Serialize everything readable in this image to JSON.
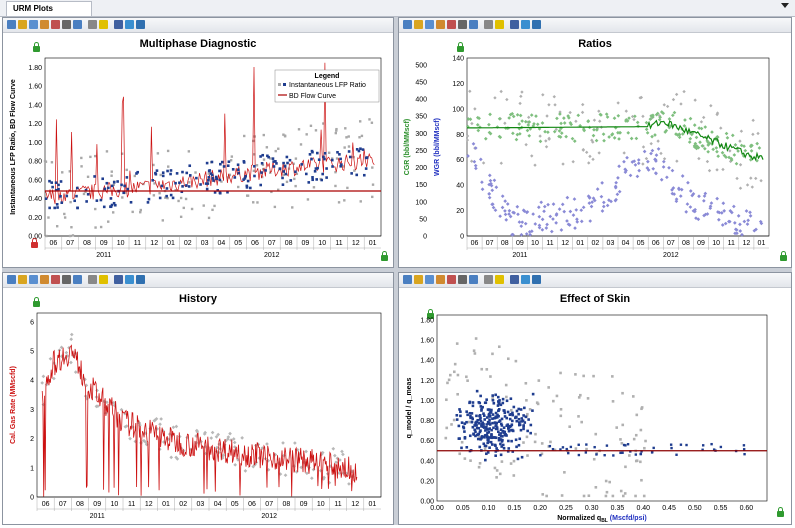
{
  "window": {
    "tab_label": "URM Plots"
  },
  "colors": {
    "gas_red": "#cc1111",
    "flow_blue": "#1f3d8f",
    "lfp_gray": "#a8a8a8",
    "cgr_green": "#7fbf7f",
    "cgr_line": "#118811",
    "wgr_purple": "#8a8ad6",
    "skin_line": "#8b0000"
  },
  "toolbar_icons": [
    "select-icon",
    "zoom-icon",
    "zoom-box-icon",
    "zoom-in-icon",
    "zoom-out-icon",
    "print-icon",
    "preview-icon",
    "copy-icon",
    "radiation-icon",
    "settings-icon",
    "filter-icon",
    "export-icon"
  ],
  "panels": {
    "multiphase": {
      "title": "Multiphase Diagnostic",
      "ylabel": "Instantaneous LFP Ratio, BD Flow Curve",
      "legend_title": "Legend",
      "legend_items": [
        "Instantaneous LFP Ratio",
        "BD Flow Curve"
      ]
    },
    "ratios": {
      "title": "Ratios",
      "ylabel_left": "CGR (bbl/MMscf)",
      "ylabel_right": "WGR (bbl/MMscf)"
    },
    "history": {
      "title": "History",
      "ylabel": "Cal. Gas Rate (MMscfd)"
    },
    "skin": {
      "title": "Effect of Skin",
      "xlabel_prefix": "Normalized q",
      "xlabel_sub": "BL",
      "xlabel_units": "(Mscfd/psi)",
      "ylabel": "q_model / q_meas"
    }
  },
  "chart_data": [
    {
      "type": "scatter",
      "title": "Multiphase Diagnostic",
      "ylabel": "Instantaneous LFP Ratio, BD Flow Curve",
      "x_ticks": [
        "06",
        "07",
        "08",
        "09",
        "10",
        "11",
        "12",
        "01",
        "02",
        "03",
        "04",
        "05",
        "06",
        "07",
        "08",
        "09",
        "10",
        "11",
        "12",
        "01"
      ],
      "x_years": [
        "2011",
        "2012"
      ],
      "yticks": [
        "0.00",
        "0.20",
        "0.40",
        "0.60",
        "0.80",
        "1.00",
        "1.20",
        "1.40",
        "1.60",
        "1.80"
      ],
      "ylim": [
        0,
        1.9
      ],
      "series": [
        {
          "name": "Instantaneous LFP Ratio",
          "kind": "points",
          "trend": [
            [
              0,
              0.42
            ],
            [
              6,
              0.52
            ],
            [
              10,
              0.62
            ],
            [
              14,
              0.72
            ],
            [
              19,
              0.8
            ]
          ]
        },
        {
          "name": "BD Flow Curve",
          "kind": "line",
          "value": 0.48
        }
      ]
    },
    {
      "type": "scatter",
      "title": "Ratios",
      "ylabel": "CGR (bbl/MMscf)",
      "y2label": "WGR (bbl/MMscf)",
      "x_ticks": [
        "06",
        "07",
        "08",
        "09",
        "10",
        "11",
        "12",
        "01",
        "02",
        "03",
        "04",
        "05",
        "06",
        "07",
        "08",
        "09",
        "10",
        "11",
        "12",
        "01"
      ],
      "x_years": [
        "2011",
        "2012"
      ],
      "yticks_left": [
        "0",
        "50",
        "100",
        "150",
        "200",
        "250",
        "300",
        "350",
        "400",
        "450",
        "500"
      ],
      "yticks_right": [
        "0",
        "20",
        "40",
        "60",
        "80",
        "100",
        "120",
        "140"
      ],
      "ylim_left": [
        0,
        520
      ],
      "ylim_right": [
        0,
        140
      ],
      "series": [
        {
          "name": "CGR",
          "kind": "line",
          "trend": [
            [
              0,
              85
            ],
            [
              12,
              86
            ],
            [
              13,
              90
            ],
            [
              19,
              62
            ]
          ]
        },
        {
          "name": "WGR",
          "kind": "points",
          "trend": [
            [
              0,
              70
            ],
            [
              3,
              10
            ],
            [
              8,
              20
            ],
            [
              12,
              65
            ],
            [
              15,
              25
            ],
            [
              19,
              5
            ]
          ]
        }
      ]
    },
    {
      "type": "line",
      "title": "History",
      "ylabel": "Cal. Gas Rate (MMscfd)",
      "x_ticks": [
        "06",
        "07",
        "08",
        "09",
        "10",
        "11",
        "12",
        "01",
        "02",
        "03",
        "04",
        "05",
        "06",
        "07",
        "08",
        "09",
        "10",
        "11",
        "12",
        "01"
      ],
      "x_years": [
        "2011",
        "2012"
      ],
      "yticks": [
        "0",
        "1",
        "2",
        "3",
        "4",
        "5",
        "6"
      ],
      "ylim": [
        0,
        6.3
      ],
      "series": [
        {
          "name": "Cal. Gas Rate",
          "trend": [
            [
              0,
              3.2
            ],
            [
              1,
              4.6
            ],
            [
              2,
              5.0
            ],
            [
              3,
              3.8
            ],
            [
              5,
              2.6
            ],
            [
              8,
              1.9
            ],
            [
              12,
              1.5
            ],
            [
              16,
              1.2
            ],
            [
              18.5,
              0.9
            ]
          ]
        }
      ]
    },
    {
      "type": "scatter",
      "title": "Effect of Skin",
      "xlabel": "Normalized qBL (Mscfd/psi)",
      "xticks": [
        "0.00",
        "0.05",
        "0.10",
        "0.15",
        "0.20",
        "0.25",
        "0.30",
        "0.35",
        "0.40",
        "0.45",
        "0.50",
        "0.55",
        "0.60"
      ],
      "yticks": [
        "0.00",
        "0.20",
        "0.40",
        "0.60",
        "0.80",
        "1.00",
        "1.20",
        "1.40",
        "1.60",
        "1.80"
      ],
      "xlim": [
        0,
        0.64
      ],
      "ylim": [
        0,
        1.85
      ],
      "series": [
        {
          "name": "skin-points",
          "kind": "points",
          "cluster_center": [
            0.11,
            0.75
          ]
        },
        {
          "name": "reference",
          "kind": "line",
          "value": 0.5
        }
      ]
    }
  ]
}
